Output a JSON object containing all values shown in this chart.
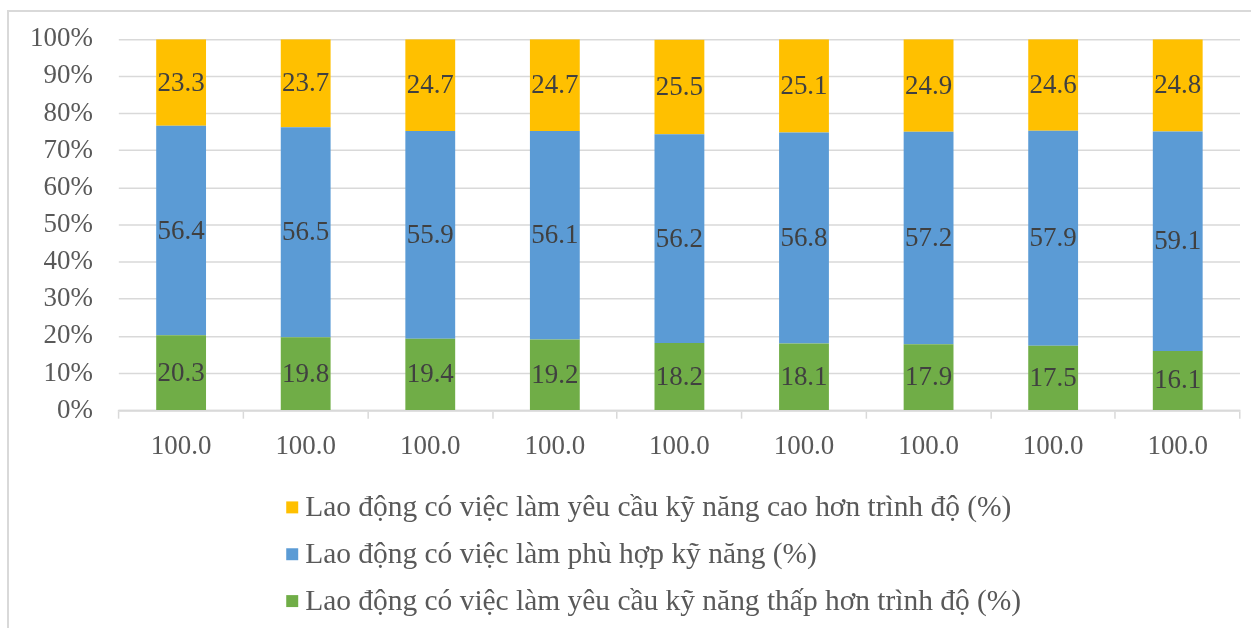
{
  "chart_data": {
    "type": "bar",
    "stacked": true,
    "categories": [
      "100.0",
      "100.0",
      "100.0",
      "100.0",
      "100.0",
      "100.0",
      "100.0",
      "100.0",
      "100.0"
    ],
    "series": [
      {
        "name": "Lao động có việc làm yêu cầu kỹ năng thấp hơn trình độ (%)",
        "color": "#70ad47",
        "values": [
          20.3,
          19.8,
          19.4,
          19.2,
          18.2,
          18.1,
          17.9,
          17.5,
          16.1
        ]
      },
      {
        "name": "Lao động có việc làm phù hợp kỹ năng (%)",
        "color": "#5b9bd5",
        "values": [
          56.4,
          56.5,
          55.9,
          56.1,
          56.2,
          56.8,
          57.2,
          57.9,
          59.1
        ]
      },
      {
        "name": "Lao động có việc làm yêu cầu kỹ năng cao hơn trình độ (%)",
        "color": "#ffc000",
        "values": [
          23.3,
          23.7,
          24.7,
          24.7,
          25.5,
          25.1,
          24.9,
          24.6,
          24.8
        ]
      }
    ],
    "ylim": [
      0,
      100
    ],
    "yticks": [
      {
        "value": 0,
        "label": "0%"
      },
      {
        "value": 10,
        "label": "10%"
      },
      {
        "value": 20,
        "label": "20%"
      },
      {
        "value": 30,
        "label": "30%"
      },
      {
        "value": 40,
        "label": "40%"
      },
      {
        "value": 50,
        "label": "50%"
      },
      {
        "value": 60,
        "label": "60%"
      },
      {
        "value": 70,
        "label": "70%"
      },
      {
        "value": 80,
        "label": "80%"
      },
      {
        "value": 90,
        "label": "90%"
      },
      {
        "value": 100,
        "label": "100%"
      }
    ],
    "grid": "y",
    "legend": "bottom",
    "data_labels": true
  }
}
